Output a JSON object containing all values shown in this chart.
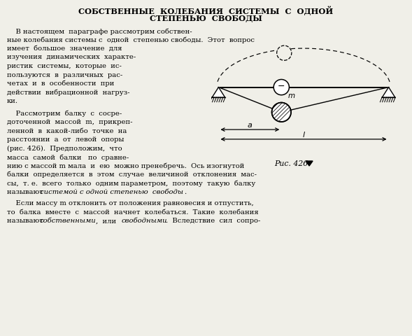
{
  "bg_color": "#f0efe8",
  "text_color": "#000000",
  "title_line1": "СОБСТВЕННЫЕ  КОЛЕБАНИЯ  СИСТЕМЫ  С  ОДНОЙ",
  "title_line2": "СТЕПЕНЬЮ  СВОБОДЫ",
  "left_col_lines": [
    "имеет  большое  значение  для",
    "изучения  динамических  характе-",
    "ристик  системы,  которые  ис-",
    "пользуются  в  различных  рас-",
    "четах  и  в  особенности  при",
    "действии  вибрационной  нагруз-",
    "ки."
  ],
  "left_col2_lines": [
    "    Рассмотрим  балку  с  сосре-",
    "доточенной  массой  m,  прикреп-",
    "ленной  в  какой-либо  точке  на",
    "расстоянии  a  от  левой  опоры",
    "(рис. 426).  Предположим,  что",
    "масса  самой  балки   по  сравне-"
  ],
  "full_lines_bottom": [
    "нию с массой m мала  и  ею  можно пренебречь.  Ось изогнутой",
    "балки  определяется  в  этом  случае  величиной  отклонения  мас-",
    "сы,  т. е.  всего  только  одним параметром,  поэтому  такую  балку"
  ],
  "last_lines": [
    "    Если массу m отклонить от положения равновесия и отпустить,",
    "то  балка  вместе  с  массой  начнет  колебаться.  Такие  колебания"
  ]
}
